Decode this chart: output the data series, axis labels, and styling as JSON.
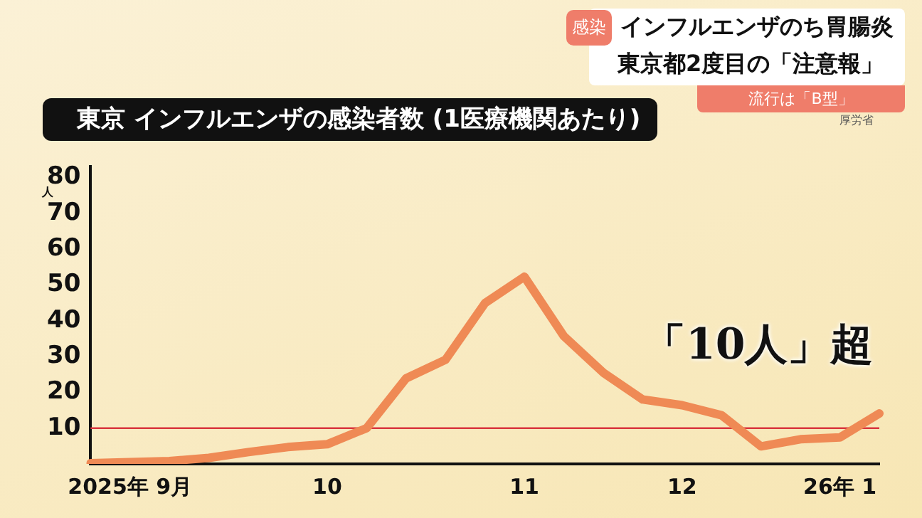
{
  "chart_data": {
    "type": "line",
    "title": "東京 インフルエンザの感染者数 (1医療機関あたり)",
    "ylabel": "人",
    "categories": [
      null,
      "2025年 9月",
      null,
      null,
      null,
      null,
      "10",
      null,
      null,
      null,
      null,
      "11",
      null,
      null,
      null,
      "12",
      null,
      null,
      null,
      "26年 1",
      null
    ],
    "series": [
      {
        "color": "#ef8a55",
        "values": [
          0.2,
          0.5,
          0.8,
          1.7,
          3.3,
          4.7,
          5.5,
          10,
          23.9,
          29.1,
          44.9,
          52.3,
          35.7,
          25.5,
          18,
          16.4,
          13.6,
          4.9,
          6.9,
          7.4,
          14.1
        ]
      }
    ],
    "ylim": [
      0,
      83
    ],
    "yticks": [
      10,
      20,
      30,
      40,
      50,
      60,
      70,
      80
    ],
    "grid": false,
    "legend": false,
    "marker": "none",
    "line_style": "solid",
    "ref_lines": [
      {
        "axis": "y",
        "value": 10,
        "color": "#d9363e"
      }
    ],
    "annotations": [
      "感染",
      "インフルエンザのち胃腸炎",
      "東京都2度目の「注意報」",
      "流行は「B型」",
      "厚労省",
      "「10人」超"
    ]
  }
}
